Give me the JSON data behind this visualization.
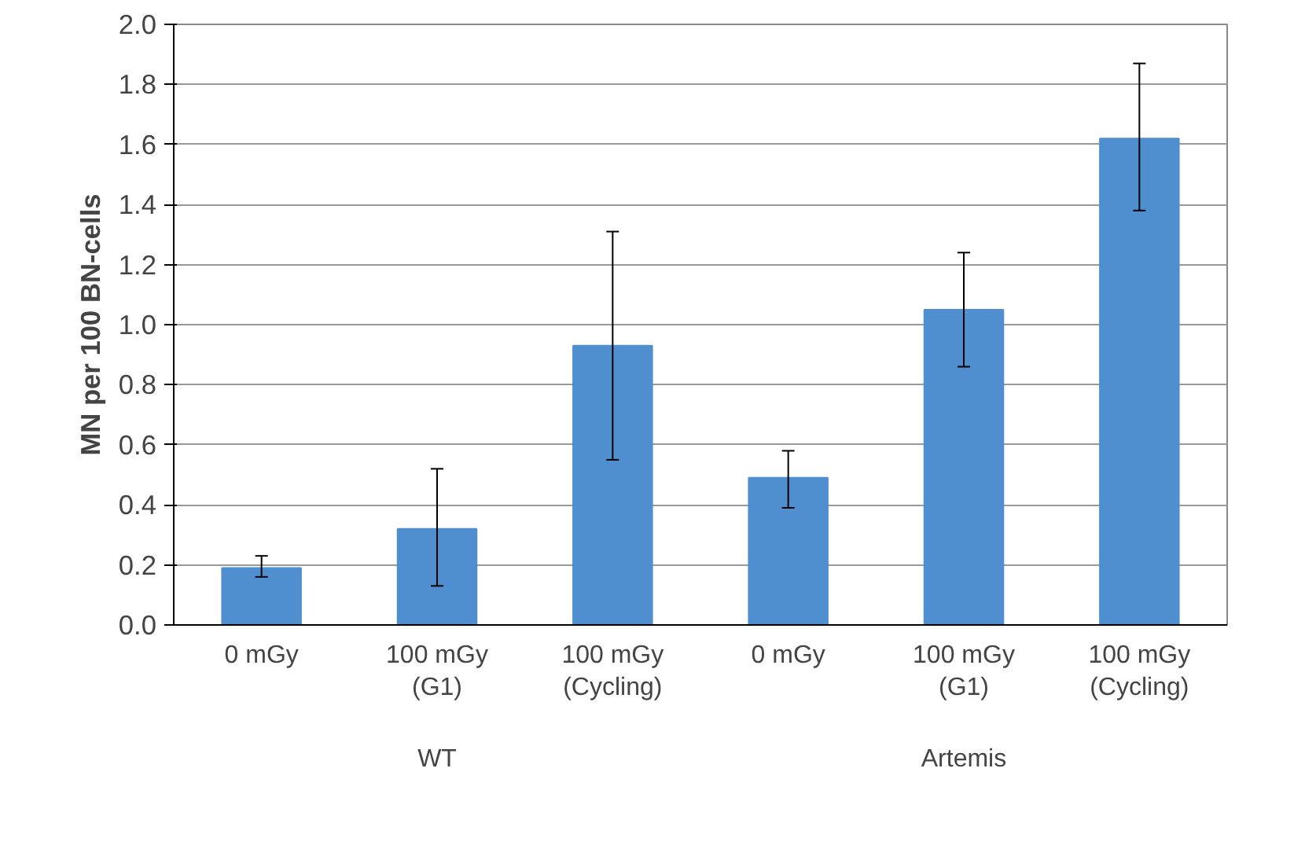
{
  "chart_data": {
    "type": "bar",
    "ylabel": "MN per 100 BN-cells",
    "categories": [
      "0 mGy",
      "100 mGy\n(G1)",
      "100 mGy\n(Cycling)",
      "0 mGy",
      "100 mGy\n(G1)",
      "100 mGy\n(Cycling)"
    ],
    "values": [
      0.19,
      0.32,
      0.93,
      0.49,
      1.05,
      1.62
    ],
    "errors": [
      [
        0.16,
        0.23
      ],
      [
        0.13,
        0.52
      ],
      [
        0.55,
        1.31
      ],
      [
        0.39,
        0.58
      ],
      [
        0.86,
        1.24
      ],
      [
        1.38,
        1.87
      ]
    ],
    "color": "#4f8fcf",
    "annotations": [
      "WT",
      "Artemis"
    ],
    "ylim": [
      0,
      2.0
    ],
    "yticks": [
      {
        "value": 0,
        "label": "0.0"
      },
      {
        "value": 0.2,
        "label": "0.2"
      },
      {
        "value": 0.4,
        "label": "0.4"
      },
      {
        "value": 0.6,
        "label": "0.6"
      },
      {
        "value": 0.8,
        "label": "0.8"
      },
      {
        "value": 1.0,
        "label": "1.0"
      },
      {
        "value": 1.2,
        "label": "1.2"
      },
      {
        "value": 1.4,
        "label": "1.4"
      },
      {
        "value": 1.6,
        "label": "1.6"
      },
      {
        "value": 1.8,
        "label": "1.8"
      },
      {
        "value": 2.0,
        "label": "2.0"
      }
    ],
    "grid": "y"
  }
}
